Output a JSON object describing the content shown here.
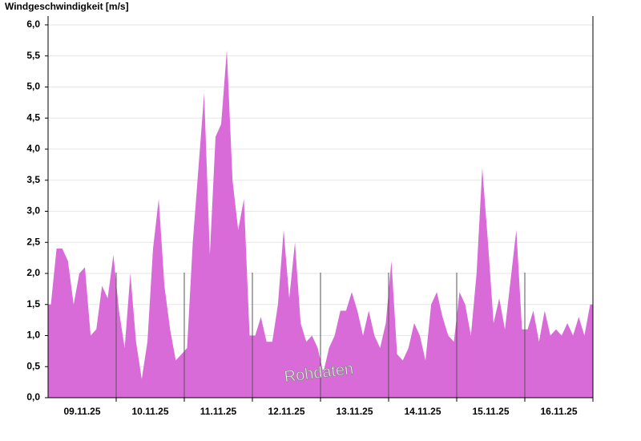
{
  "chart_data": {
    "type": "area",
    "title": "Windgeschwindigkeit [m/s]",
    "annotation": "Rohdaten",
    "x_labels": [
      "09.11.25",
      "10.11.25",
      "11.11.25",
      "12.11.25",
      "13.11.25",
      "14.11.25",
      "15.11.25",
      "16.11.25"
    ],
    "color": "#d86bd8",
    "grid": true,
    "ylim": [
      0,
      6
    ],
    "yticks": [
      {
        "value": 0,
        "label": "0,0"
      },
      {
        "value": 0.5,
        "label": "0,5"
      },
      {
        "value": 1,
        "label": "1,0"
      },
      {
        "value": 1.5,
        "label": "1,5"
      },
      {
        "value": 2,
        "label": "2,0"
      },
      {
        "value": 2.5,
        "label": "2,5"
      },
      {
        "value": 3,
        "label": "3,0"
      },
      {
        "value": 3.5,
        "label": "3,5"
      },
      {
        "value": 4,
        "label": "4,0"
      },
      {
        "value": 4.5,
        "label": "4,5"
      },
      {
        "value": 5,
        "label": "5,0"
      },
      {
        "value": 5.5,
        "label": "5,5"
      },
      {
        "value": 6,
        "label": "6,0"
      }
    ],
    "values": [
      1.5,
      2.4,
      2.4,
      2.2,
      1.5,
      2.0,
      2.1,
      1.0,
      1.1,
      1.8,
      1.6,
      2.3,
      1.4,
      0.8,
      2.0,
      0.9,
      0.3,
      0.9,
      2.4,
      3.2,
      1.8,
      1.1,
      0.6,
      0.7,
      0.8,
      2.5,
      3.7,
      4.9,
      2.3,
      4.2,
      4.4,
      5.6,
      3.5,
      2.7,
      3.2,
      1.0,
      1.0,
      1.3,
      0.9,
      0.9,
      1.5,
      2.7,
      1.6,
      2.5,
      1.2,
      0.9,
      1.0,
      0.8,
      0.4,
      0.8,
      1.0,
      1.4,
      1.4,
      1.7,
      1.4,
      1.0,
      1.4,
      1.0,
      0.8,
      1.2,
      2.2,
      0.7,
      0.6,
      0.8,
      1.2,
      1.0,
      0.6,
      1.5,
      1.7,
      1.3,
      1.0,
      0.9,
      1.7,
      1.5,
      1.0,
      2.0,
      3.7,
      2.5,
      1.2,
      1.6,
      1.1,
      1.9,
      2.7,
      1.1,
      1.1,
      1.4,
      0.9,
      1.4,
      1.0,
      1.1,
      1.0,
      1.2,
      1.0,
      1.3,
      1.0,
      1.5
    ]
  }
}
